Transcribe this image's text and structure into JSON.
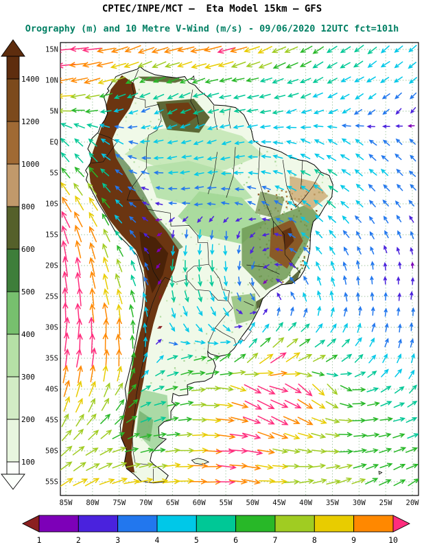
{
  "title": {
    "line1": "CPTEC/INPE/MCT —  Eta Model 15km — GFS",
    "line2": "Orography (m) and 10 Metre V-Wind (m/s) - 09/06/2020 12UTC fct=101h"
  },
  "colors": {
    "title_black": "#000000",
    "subtitle_teal": "#007f63",
    "grid_green": "#9cc49c",
    "coastline_black": "#000000"
  },
  "chart_data": {
    "type": "heatmap",
    "title": "CPTEC/INPE/MCT — Eta Model 15km — GFS",
    "subtitle": "Orography (m) and 10 Metre V-Wind (m/s) - 09/06/2020 12UTC fct=101h",
    "region": "South America",
    "projection": "latlon",
    "grid": true,
    "x_axis": {
      "label": "longitude",
      "ticks": [
        "85W",
        "80W",
        "75W",
        "70W",
        "65W",
        "60W",
        "55W",
        "50W",
        "45W",
        "40W",
        "35W",
        "30W",
        "25W",
        "20W"
      ],
      "values": [
        -85,
        -80,
        -75,
        -70,
        -65,
        -60,
        -55,
        -50,
        -45,
        -40,
        -35,
        -30,
        -25,
        -20
      ]
    },
    "y_axis": {
      "label": "latitude",
      "ticks": [
        "15N",
        "10N",
        "5N",
        "EQ",
        "5S",
        "10S",
        "15S",
        "20S",
        "25S",
        "30S",
        "35S",
        "40S",
        "45S",
        "50S",
        "55S"
      ],
      "values": [
        15,
        10,
        5,
        0,
        -5,
        -10,
        -15,
        -20,
        -25,
        -30,
        -35,
        -40,
        -45,
        -50,
        -55
      ]
    },
    "orography_scale": {
      "units": "m",
      "boundaries": [
        100,
        200,
        300,
        400,
        500,
        600,
        800,
        1000,
        1200,
        1400
      ],
      "segment_colors": [
        "#e8f6df",
        "#d2ecc5",
        "#b5e0a6",
        "#77c06e",
        "#3e7e3a",
        "#55602a",
        "#c1996b",
        "#a06a34",
        "#7c4a1c"
      ],
      "below_color": "#fcfffb",
      "above_color": "#5e2d0e"
    },
    "wind_scale": {
      "units": "m/s",
      "boundaries": [
        1,
        2,
        3,
        4,
        5,
        6,
        7,
        8,
        9,
        10
      ],
      "segment_colors": [
        "#7d00b8",
        "#4a22dd",
        "#2277ee",
        "#00c8e8",
        "#00c896",
        "#28b828",
        "#a0cc22",
        "#e8cc00",
        "#ff8800"
      ],
      "below_color": "#8b2020",
      "above_color": "#ff2d7d"
    },
    "wind_grid": {
      "comment": "10m wind vectors sampled on a 5-degree grid; [direction_deg_pointing_toward_ccw_from_east, speed_ms]",
      "lons": [
        -85,
        -80,
        -75,
        -70,
        -65,
        -60,
        -55,
        -50,
        -45,
        -40,
        -35,
        -30,
        -25,
        -20
      ],
      "lats": [
        15,
        10,
        5,
        0,
        -5,
        -10,
        -15,
        -20,
        -25,
        -30,
        -35,
        -40,
        -45,
        -50,
        -55
      ],
      "vectors": [
        [
          [
            185,
            10.5
          ],
          [
            190,
            10.5
          ],
          [
            196,
            9.4
          ],
          [
            200,
            9.2
          ],
          [
            196,
            9.3
          ],
          [
            191,
            9.5
          ],
          [
            196,
            10.3
          ],
          [
            200,
            8.8
          ],
          [
            205,
            7.8
          ],
          [
            209,
            6.8
          ],
          [
            211,
            5.8
          ],
          [
            214,
            5.4
          ],
          [
            218,
            5.0
          ],
          [
            222,
            4.6
          ]
        ],
        [
          [
            190,
            9.6
          ],
          [
            194,
            9.0
          ],
          [
            200,
            7.4
          ],
          [
            205,
            6.4
          ],
          [
            202,
            6.6
          ],
          [
            197,
            6.8
          ],
          [
            193,
            6.4
          ],
          [
            196,
            6.2
          ],
          [
            200,
            5.8
          ],
          [
            204,
            5.4
          ],
          [
            207,
            5.2
          ],
          [
            211,
            4.8
          ],
          [
            214,
            4.4
          ],
          [
            218,
            4.2
          ]
        ],
        [
          [
            178,
            7.0
          ],
          [
            184,
            6.2
          ],
          [
            195,
            4.2
          ],
          [
            203,
            4.0
          ],
          [
            208,
            5.0
          ],
          [
            200,
            5.2
          ],
          [
            195,
            5.4
          ],
          [
            191,
            5.2
          ],
          [
            195,
            5.0
          ],
          [
            200,
            4.8
          ],
          [
            206,
            4.4
          ],
          [
            212,
            3.8
          ],
          [
            222,
            3.2
          ],
          [
            231,
            2.8
          ]
        ],
        [
          [
            135,
            5.4
          ],
          [
            140,
            5.2
          ],
          [
            152,
            4.2
          ],
          [
            188,
            4.2
          ],
          [
            194,
            4.6
          ],
          [
            199,
            4.4
          ],
          [
            195,
            4.2
          ],
          [
            188,
            4.2
          ],
          [
            170,
            4.4
          ],
          [
            156,
            4.8
          ],
          [
            150,
            4.8
          ],
          [
            145,
            4.2
          ],
          [
            140,
            3.4
          ],
          [
            136,
            3.0
          ]
        ],
        [
          [
            128,
            6.6
          ],
          [
            133,
            6.8
          ],
          [
            146,
            3.6
          ],
          [
            168,
            3.4
          ],
          [
            184,
            4.2
          ],
          [
            189,
            4.4
          ],
          [
            184,
            4.2
          ],
          [
            175,
            4.2
          ],
          [
            161,
            4.4
          ],
          [
            151,
            5.0
          ],
          [
            146,
            5.2
          ],
          [
            141,
            4.4
          ],
          [
            139,
            4.0
          ],
          [
            136,
            3.4
          ]
        ],
        [
          [
            118,
            9.6
          ],
          [
            124,
            8.2
          ],
          [
            134,
            4.4
          ],
          [
            158,
            2.4
          ],
          [
            178,
            3.0
          ],
          [
            184,
            3.2
          ],
          [
            171,
            3.1
          ],
          [
            160,
            3.2
          ],
          [
            150,
            3.8
          ],
          [
            144,
            4.4
          ],
          [
            140,
            5.0
          ],
          [
            135,
            4.2
          ],
          [
            131,
            3.4
          ],
          [
            129,
            3.0
          ]
        ],
        [
          [
            108,
            10.6
          ],
          [
            114,
            9.2
          ],
          [
            124,
            5.4
          ],
          [
            138,
            2.2
          ],
          [
            258,
            3.0
          ],
          [
            263,
            4.0
          ],
          [
            268,
            3.8
          ],
          [
            222,
            2.4
          ],
          [
            165,
            2.8
          ],
          [
            141,
            4.0
          ],
          [
            132,
            4.4
          ],
          [
            123,
            3.6
          ],
          [
            117,
            3.2
          ],
          [
            111,
            3.0
          ]
        ],
        [
          [
            98,
            10.8
          ],
          [
            103,
            9.6
          ],
          [
            109,
            7.0
          ],
          [
            118,
            3.2
          ],
          [
            264,
            5.6
          ],
          [
            269,
            5.8
          ],
          [
            274,
            4.6
          ],
          [
            252,
            3.2
          ],
          [
            172,
            2.6
          ],
          [
            121,
            4.0
          ],
          [
            111,
            4.2
          ],
          [
            101,
            3.4
          ],
          [
            96,
            2.8
          ],
          [
            91,
            1.8
          ]
        ],
        [
          [
            94,
            10.8
          ],
          [
            99,
            9.6
          ],
          [
            104,
            8.2
          ],
          [
            110,
            4.2
          ],
          [
            281,
            5.4
          ],
          [
            286,
            5.6
          ],
          [
            291,
            4.4
          ],
          [
            301,
            3.4
          ],
          [
            122,
            3.0
          ],
          [
            111,
            4.0
          ],
          [
            101,
            4.2
          ],
          [
            95,
            3.4
          ],
          [
            90,
            3.0
          ],
          [
            86,
            3.0
          ]
        ],
        [
          [
            86,
            10.6
          ],
          [
            90,
            10.4
          ],
          [
            95,
            9.4
          ],
          [
            101,
            4.4
          ],
          [
            300,
            4.2
          ],
          [
            311,
            4.4
          ],
          [
            321,
            4.2
          ],
          [
            58,
            4.2
          ],
          [
            51,
            5.2
          ],
          [
            46,
            5.4
          ],
          [
            56,
            4.6
          ],
          [
            70,
            4.2
          ],
          [
            80,
            3.4
          ],
          [
            85,
            3.2
          ]
        ],
        [
          [
            81,
            10.5
          ],
          [
            85,
            10.4
          ],
          [
            90,
            9.4
          ],
          [
            71,
            4.4
          ],
          [
            21,
            5.2
          ],
          [
            11,
            6.4
          ],
          [
            31,
            6.6
          ],
          [
            41,
            7.4
          ],
          [
            36,
            10.4
          ],
          [
            26,
            7.6
          ],
          [
            31,
            6.6
          ],
          [
            46,
            5.4
          ],
          [
            61,
            4.4
          ],
          [
            71,
            4.2
          ]
        ],
        [
          [
            76,
            9.4
          ],
          [
            71,
            8.6
          ],
          [
            61,
            7.4
          ],
          [
            31,
            5.4
          ],
          [
            16,
            6.4
          ],
          [
            6,
            7.4
          ],
          [
            352,
            7.6
          ],
          [
            332,
            10.6
          ],
          [
            341,
            10.8
          ],
          [
            321,
            10.2
          ],
          [
            311,
            7.6
          ],
          [
            1,
            6.6
          ],
          [
            31,
            5.6
          ],
          [
            46,
            5.2
          ]
        ],
        [
          [
            61,
            7.6
          ],
          [
            51,
            7.4
          ],
          [
            41,
            6.6
          ],
          [
            21,
            5.6
          ],
          [
            11,
            6.4
          ],
          [
            1,
            7.4
          ],
          [
            351,
            9.6
          ],
          [
            341,
            10.4
          ],
          [
            331,
            10.4
          ],
          [
            336,
            9.2
          ],
          [
            346,
            7.6
          ],
          [
            1,
            6.6
          ],
          [
            11,
            6.2
          ],
          [
            21,
            5.6
          ]
        ],
        [
          [
            41,
            7.6
          ],
          [
            31,
            7.4
          ],
          [
            21,
            7.4
          ],
          [
            11,
            6.6
          ],
          [
            6,
            7.4
          ],
          [
            1,
            8.6
          ],
          [
            356,
            10.2
          ],
          [
            351,
            10.4
          ],
          [
            346,
            8.0
          ],
          [
            351,
            7.6
          ],
          [
            1,
            7.4
          ],
          [
            11,
            6.6
          ],
          [
            16,
            6.4
          ],
          [
            21,
            6.2
          ]
        ],
        [
          [
            31,
            8.4
          ],
          [
            26,
            8.4
          ],
          [
            16,
            8.6
          ],
          [
            11,
            8.4
          ],
          [
            6,
            8.6
          ],
          [
            1,
            9.4
          ],
          [
            356,
            10.4
          ],
          [
            351,
            9.0
          ],
          [
            1,
            8.4
          ],
          [
            11,
            7.6
          ],
          [
            16,
            7.4
          ],
          [
            21,
            7.4
          ],
          [
            26,
            6.6
          ],
          [
            31,
            6.4
          ]
        ]
      ]
    }
  }
}
